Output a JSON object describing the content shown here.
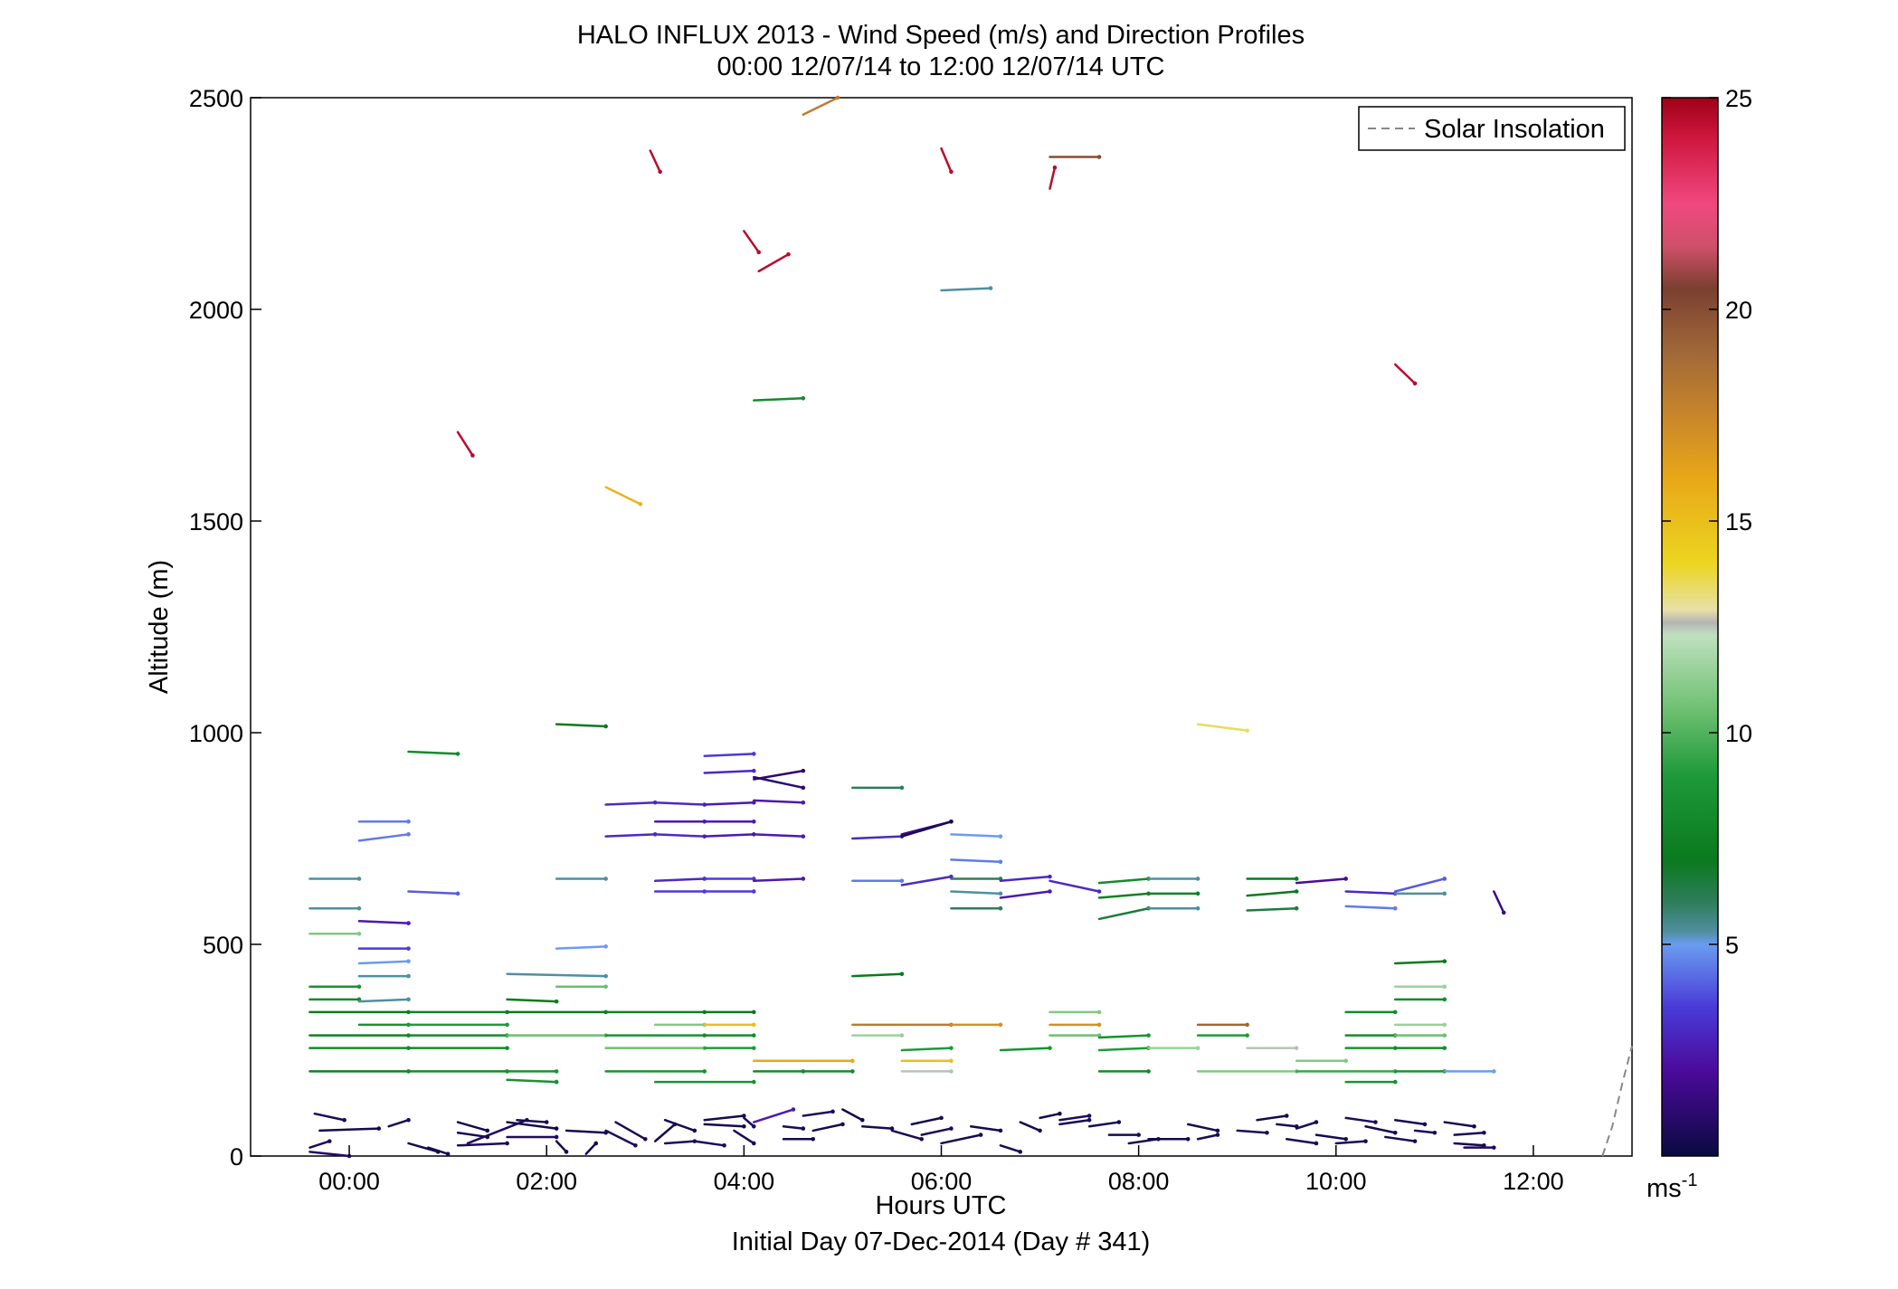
{
  "chart_data": {
    "type": "wind-barb-profile",
    "title": "HALO INFLUX 2013 - Wind Speed (m/s) and Direction Profiles",
    "subtitle": "00:00 12/07/14 to 12:00 12/07/14  UTC",
    "xlabel": "Hours UTC",
    "xlabel2": "Initial Day 07-Dec-2014 (Day # 341)",
    "ylabel": "Altitude (m)",
    "xlim": [
      -1.0,
      13.0
    ],
    "ylim": [
      0,
      2500
    ],
    "xticks": [
      0,
      2,
      4,
      6,
      8,
      10,
      12
    ],
    "xtick_labels": [
      "00:00",
      "02:00",
      "04:00",
      "06:00",
      "08:00",
      "10:00",
      "12:00"
    ],
    "yticks": [
      0,
      500,
      1000,
      1500,
      2000,
      2500
    ],
    "ytick_labels": [
      "0",
      "500",
      "1000",
      "1500",
      "2000",
      "2500"
    ],
    "legend": {
      "label": "Solar Insolation",
      "position": "top-right",
      "style": "dashed",
      "color": "#888888"
    },
    "colorbar": {
      "label": "ms-1",
      "range": [
        0,
        25
      ],
      "ticks": [
        5,
        10,
        15,
        20,
        25
      ],
      "tick_labels": [
        "5",
        "10",
        "15",
        "20",
        "25"
      ],
      "stops": [
        [
          0,
          "#0a0a40"
        ],
        [
          2,
          "#4b0a9a"
        ],
        [
          3.5,
          "#4a3ad8"
        ],
        [
          5,
          "#6a9cf0"
        ],
        [
          5.3,
          "#4f8fa0"
        ],
        [
          6,
          "#2e7d5a"
        ],
        [
          7,
          "#0a7a1e"
        ],
        [
          9,
          "#1e9a3a"
        ],
        [
          10.5,
          "#6cbf6f"
        ],
        [
          12.3,
          "#bfe0bf"
        ],
        [
          12.6,
          "#b4b4b4"
        ],
        [
          12.9,
          "#e8e0a8"
        ],
        [
          14,
          "#ecd520"
        ],
        [
          16,
          "#e8a818"
        ],
        [
          17.5,
          "#c8862a"
        ],
        [
          19,
          "#a06838"
        ],
        [
          20.5,
          "#7a4030"
        ],
        [
          21.5,
          "#d0506a"
        ],
        [
          22.5,
          "#f04880"
        ],
        [
          24,
          "#d01840"
        ],
        [
          25,
          "#a00018"
        ]
      ]
    },
    "solar_insolation": {
      "x": [
        12.7,
        12.8,
        12.9,
        13.0
      ],
      "y": [
        0,
        70,
        170,
        260
      ]
    },
    "segments": [
      [
        -0.35,
        100,
        -0.05,
        85,
        0.5
      ],
      [
        -0.3,
        60,
        0.3,
        65,
        0.3
      ],
      [
        0.4,
        70,
        0.6,
        85,
        0.6
      ],
      [
        -0.4,
        20,
        -0.2,
        35,
        0.5
      ],
      [
        0.6,
        30,
        0.9,
        10,
        0.3
      ],
      [
        -0.4,
        10,
        0.0,
        0,
        0.8
      ],
      [
        1.1,
        80,
        1.4,
        60,
        0.3
      ],
      [
        1.1,
        55,
        1.4,
        45,
        0.4
      ],
      [
        1.1,
        25,
        1.6,
        30,
        0.5
      ],
      [
        1.2,
        30,
        1.8,
        85,
        0.7
      ],
      [
        1.7,
        85,
        2.0,
        80,
        0.4
      ],
      [
        1.6,
        80,
        2.1,
        65,
        0.2
      ],
      [
        1.6,
        45,
        2.1,
        45,
        0.6
      ],
      [
        2.1,
        35,
        2.2,
        10,
        0.3
      ],
      [
        2.2,
        60,
        2.6,
        55,
        0.4
      ],
      [
        2.6,
        60,
        2.9,
        25,
        0.6
      ],
      [
        2.7,
        80,
        3.0,
        40,
        0.5
      ],
      [
        3.1,
        35,
        3.3,
        75,
        0.3
      ],
      [
        3.2,
        85,
        3.5,
        60,
        0.4
      ],
      [
        3.2,
        30,
        3.5,
        35,
        0.6
      ],
      [
        3.5,
        35,
        3.8,
        25,
        0.5
      ],
      [
        3.6,
        75,
        4.0,
        70,
        0.3
      ],
      [
        3.6,
        85,
        4.0,
        95,
        0.4
      ],
      [
        4.0,
        90,
        4.1,
        70,
        0.7
      ],
      [
        3.9,
        60,
        4.1,
        30,
        0.5
      ],
      [
        4.1,
        80,
        4.5,
        110,
        2.5
      ],
      [
        4.4,
        70,
        4.6,
        65,
        0.5
      ],
      [
        4.6,
        95,
        4.9,
        105,
        0.6
      ],
      [
        4.7,
        60,
        5.0,
        75,
        0.4
      ],
      [
        4.4,
        40,
        4.7,
        40,
        0.3
      ],
      [
        5.0,
        110,
        5.2,
        85,
        0.3
      ],
      [
        5.2,
        70,
        5.5,
        65,
        0.4
      ],
      [
        5.5,
        60,
        5.8,
        40,
        0.5
      ],
      [
        5.7,
        75,
        6.0,
        90,
        0.3
      ],
      [
        5.8,
        50,
        6.1,
        65,
        0.6
      ],
      [
        6.0,
        30,
        6.4,
        50,
        0.4
      ],
      [
        6.3,
        70,
        6.6,
        60,
        0.3
      ],
      [
        6.6,
        25,
        6.8,
        10,
        0.5
      ],
      [
        6.8,
        80,
        7.0,
        60,
        0.4
      ],
      [
        7.0,
        90,
        7.2,
        100,
        0.3
      ],
      [
        7.2,
        75,
        7.5,
        85,
        0.5
      ],
      [
        7.2,
        85,
        7.5,
        95,
        0.6
      ],
      [
        7.5,
        70,
        7.8,
        80,
        0.3
      ],
      [
        7.7,
        50,
        8.0,
        50,
        0.4
      ],
      [
        7.9,
        30,
        8.2,
        40,
        0.5
      ],
      [
        8.1,
        40,
        8.5,
        40,
        0.3
      ],
      [
        8.5,
        75,
        8.8,
        60,
        0.4
      ],
      [
        8.6,
        40,
        8.8,
        50,
        0.5
      ],
      [
        9.0,
        60,
        9.3,
        55,
        0.6
      ],
      [
        9.2,
        85,
        9.5,
        95,
        0.3
      ],
      [
        9.4,
        75,
        9.6,
        70,
        0.4
      ],
      [
        9.5,
        40,
        9.8,
        30,
        0.5
      ],
      [
        9.6,
        65,
        9.8,
        80,
        0.3
      ],
      [
        9.8,
        50,
        10.1,
        40,
        0.4
      ],
      [
        10.0,
        30,
        10.3,
        35,
        0.5
      ],
      [
        10.1,
        90,
        10.4,
        80,
        0.6
      ],
      [
        10.3,
        70,
        10.6,
        55,
        0.3
      ],
      [
        10.5,
        45,
        10.8,
        35,
        0.5
      ],
      [
        10.6,
        85,
        10.9,
        75,
        0.4
      ],
      [
        10.8,
        60,
        11.0,
        55,
        0.6
      ],
      [
        11.1,
        80,
        11.4,
        70,
        0.3
      ],
      [
        11.2,
        30,
        11.5,
        25,
        0.4
      ],
      [
        11.2,
        50,
        11.5,
        55,
        0.5
      ],
      [
        11.3,
        20,
        11.6,
        20,
        0.6
      ],
      [
        0.8,
        20,
        1.0,
        5,
        0.4
      ],
      [
        2.4,
        5,
        2.5,
        30,
        0.3
      ],
      [
        -0.4,
        200,
        0.6,
        200,
        7.5
      ],
      [
        0.6,
        200,
        1.6,
        200,
        8.0
      ],
      [
        1.6,
        200,
        2.1,
        200,
        8.5
      ],
      [
        -0.4,
        255,
        0.6,
        255,
        8.0
      ],
      [
        0.6,
        255,
        1.6,
        255,
        8.0
      ],
      [
        -0.4,
        285,
        0.6,
        285,
        7.5
      ],
      [
        0.6,
        285,
        1.6,
        285,
        8.0
      ],
      [
        1.6,
        285,
        2.6,
        285,
        10.5
      ],
      [
        2.6,
        285,
        3.6,
        285,
        8.5
      ],
      [
        3.6,
        285,
        4.1,
        285,
        8.0
      ],
      [
        -0.4,
        340,
        0.6,
        340,
        7.0
      ],
      [
        0.6,
        340,
        1.6,
        340,
        7.5
      ],
      [
        1.6,
        340,
        2.6,
        340,
        7.0
      ],
      [
        2.6,
        340,
        3.6,
        340,
        7.5
      ],
      [
        3.6,
        340,
        4.1,
        340,
        7.0
      ],
      [
        0.1,
        310,
        0.6,
        310,
        8.5
      ],
      [
        0.6,
        310,
        1.6,
        310,
        9.0
      ],
      [
        -0.4,
        370,
        0.1,
        370,
        8.0
      ],
      [
        0.1,
        365,
        0.6,
        370,
        5.3
      ],
      [
        -0.4,
        400,
        0.1,
        400,
        8.5
      ],
      [
        0.1,
        425,
        0.6,
        425,
        5.3
      ],
      [
        0.1,
        455,
        0.6,
        460,
        5.0
      ],
      [
        0.1,
        490,
        0.6,
        490,
        3.5
      ],
      [
        -0.4,
        525,
        0.1,
        525,
        11.0
      ],
      [
        0.1,
        555,
        0.6,
        550,
        2.5
      ],
      [
        -0.4,
        585,
        0.1,
        585,
        5.3
      ],
      [
        -0.4,
        655,
        0.1,
        655,
        5.3
      ],
      [
        0.6,
        625,
        1.1,
        620,
        4.0
      ],
      [
        0.1,
        790,
        0.6,
        790,
        4.5
      ],
      [
        0.1,
        745,
        0.6,
        760,
        4.5
      ],
      [
        0.6,
        955,
        1.1,
        950,
        8.0
      ],
      [
        1.6,
        180,
        2.1,
        175,
        8.5
      ],
      [
        2.1,
        175,
        2.1,
        175,
        8.5
      ],
      [
        1.6,
        370,
        2.1,
        365,
        7.0
      ],
      [
        1.6,
        430,
        2.6,
        425,
        5.3
      ],
      [
        2.1,
        400,
        2.6,
        400,
        10.5
      ],
      [
        2.1,
        490,
        2.6,
        495,
        5.0
      ],
      [
        2.1,
        655,
        2.6,
        655,
        5.3
      ],
      [
        2.1,
        1020,
        2.6,
        1015,
        7.0
      ],
      [
        2.6,
        200,
        3.6,
        200,
        8.5
      ],
      [
        3.1,
        175,
        4.1,
        175,
        8.5
      ],
      [
        2.6,
        255,
        3.6,
        255,
        10.5
      ],
      [
        3.6,
        255,
        4.1,
        255,
        9.0
      ],
      [
        3.1,
        310,
        3.6,
        310,
        11.0
      ],
      [
        3.6,
        310,
        4.1,
        310,
        15.0
      ],
      [
        4.1,
        225,
        5.1,
        225,
        16.0
      ],
      [
        4.1,
        200,
        4.6,
        200,
        8.0
      ],
      [
        4.6,
        200,
        5.1,
        200,
        8.0
      ],
      [
        5.1,
        310,
        6.1,
        310,
        18.0
      ],
      [
        6.1,
        310,
        6.6,
        310,
        17.0
      ],
      [
        5.1,
        285,
        5.6,
        285,
        11.5
      ],
      [
        5.6,
        225,
        6.1,
        225,
        15.0
      ],
      [
        5.6,
        200,
        6.1,
        200,
        12.5
      ],
      [
        5.6,
        250,
        6.1,
        255,
        9.0
      ],
      [
        5.1,
        425,
        5.6,
        430,
        7.0
      ],
      [
        6.6,
        250,
        7.1,
        255,
        8.5
      ],
      [
        7.1,
        285,
        7.6,
        285,
        10.5
      ],
      [
        7.1,
        310,
        7.6,
        310,
        17.0
      ],
      [
        7.1,
        340,
        7.6,
        340,
        11.0
      ],
      [
        7.6,
        250,
        8.1,
        255,
        9.0
      ],
      [
        7.6,
        200,
        8.1,
        200,
        8.0
      ],
      [
        7.6,
        280,
        8.1,
        285,
        8.5
      ],
      [
        8.1,
        255,
        8.6,
        255,
        11.5
      ],
      [
        8.6,
        285,
        9.1,
        285,
        9.0
      ],
      [
        8.6,
        310,
        9.1,
        310,
        19.0
      ],
      [
        9.1,
        255,
        9.6,
        255,
        12.5
      ],
      [
        8.6,
        200,
        9.6,
        200,
        11.0
      ],
      [
        9.6,
        200,
        10.6,
        200,
        9.5
      ],
      [
        9.6,
        225,
        10.1,
        225,
        11.0
      ],
      [
        10.1,
        175,
        10.6,
        175,
        8.5
      ],
      [
        10.1,
        255,
        10.6,
        255,
        8.5
      ],
      [
        10.6,
        255,
        11.1,
        255,
        8.0
      ],
      [
        10.1,
        285,
        10.6,
        285,
        8.0
      ],
      [
        10.6,
        285,
        11.1,
        285,
        10.5
      ],
      [
        10.1,
        340,
        10.6,
        340,
        8.0
      ],
      [
        10.6,
        310,
        11.1,
        310,
        11.5
      ],
      [
        10.6,
        370,
        11.1,
        370,
        8.0
      ],
      [
        10.6,
        400,
        11.1,
        400,
        11.5
      ],
      [
        10.6,
        455,
        11.1,
        460,
        7.0
      ],
      [
        10.6,
        200,
        11.1,
        200,
        8.5
      ],
      [
        11.1,
        200,
        11.6,
        200,
        5.0
      ],
      [
        2.6,
        830,
        3.1,
        835,
        3.0
      ],
      [
        3.1,
        835,
        3.6,
        830,
        3.0
      ],
      [
        3.6,
        830,
        4.1,
        835,
        2.5
      ],
      [
        4.1,
        840,
        4.6,
        835,
        2.5
      ],
      [
        2.6,
        755,
        3.1,
        760,
        3.0
      ],
      [
        3.1,
        760,
        3.6,
        755,
        3.0
      ],
      [
        3.6,
        755,
        4.1,
        760,
        2.5
      ],
      [
        4.1,
        760,
        4.6,
        755,
        2.5
      ],
      [
        3.1,
        790,
        3.6,
        790,
        2.5
      ],
      [
        3.6,
        790,
        4.1,
        790,
        2.5
      ],
      [
        3.1,
        650,
        3.6,
        655,
        3.0
      ],
      [
        3.6,
        655,
        4.1,
        655,
        3.5
      ],
      [
        4.1,
        650,
        4.6,
        655,
        2.5
      ],
      [
        3.1,
        625,
        3.6,
        625,
        3.5
      ],
      [
        3.6,
        625,
        4.1,
        625,
        3.5
      ],
      [
        3.6,
        905,
        4.1,
        910,
        3.0
      ],
      [
        3.6,
        945,
        4.1,
        950,
        3.5
      ],
      [
        4.1,
        890,
        4.6,
        910,
        1.0
      ],
      [
        4.1,
        895,
        4.6,
        870,
        1.0
      ],
      [
        5.1,
        870,
        5.6,
        870,
        6.0
      ],
      [
        5.1,
        750,
        5.6,
        755,
        3.0
      ],
      [
        5.6,
        760,
        6.1,
        790,
        1.5
      ],
      [
        5.6,
        755,
        6.1,
        790,
        0.5
      ],
      [
        5.1,
        650,
        5.6,
        650,
        4.5
      ],
      [
        5.6,
        640,
        6.1,
        660,
        3.0
      ],
      [
        6.1,
        760,
        6.6,
        755,
        5.0
      ],
      [
        6.1,
        700,
        6.6,
        695,
        4.5
      ],
      [
        6.1,
        655,
        6.6,
        655,
        6.0
      ],
      [
        6.1,
        625,
        6.6,
        620,
        5.3
      ],
      [
        6.1,
        585,
        6.6,
        585,
        6.0
      ],
      [
        6.6,
        650,
        7.1,
        660,
        3.0
      ],
      [
        6.6,
        610,
        7.1,
        625,
        2.5
      ],
      [
        7.1,
        650,
        7.6,
        625,
        3.0
      ],
      [
        7.6,
        645,
        8.1,
        655,
        8.0
      ],
      [
        8.1,
        655,
        8.6,
        655,
        5.3
      ],
      [
        7.6,
        610,
        8.1,
        620,
        7.5
      ],
      [
        8.1,
        620,
        8.6,
        620,
        7.5
      ],
      [
        7.6,
        560,
        8.1,
        585,
        6.5
      ],
      [
        8.1,
        585,
        8.6,
        585,
        5.3
      ],
      [
        9.1,
        655,
        9.6,
        655,
        7.0
      ],
      [
        9.1,
        615,
        9.6,
        625,
        7.0
      ],
      [
        9.1,
        580,
        9.6,
        585,
        6.5
      ],
      [
        9.6,
        645,
        10.1,
        655,
        2.0
      ],
      [
        10.1,
        625,
        10.6,
        620,
        3.0
      ],
      [
        10.1,
        590,
        10.6,
        585,
        4.5
      ],
      [
        10.6,
        620,
        11.1,
        620,
        5.3
      ],
      [
        10.6,
        625,
        11.1,
        655,
        4.0
      ],
      [
        11.6,
        625,
        11.7,
        575,
        1.5
      ],
      [
        8.6,
        1020,
        9.1,
        1005,
        13.5
      ],
      [
        1.1,
        1710,
        1.25,
        1655,
        24.5
      ],
      [
        2.6,
        1580,
        2.95,
        1540,
        15.5
      ],
      [
        4.1,
        1785,
        4.6,
        1790,
        8.0
      ],
      [
        3.05,
        2375,
        3.15,
        2325,
        24.5
      ],
      [
        4.0,
        2185,
        4.15,
        2135,
        24.5
      ],
      [
        4.15,
        2090,
        4.45,
        2130,
        24.5
      ],
      [
        4.6,
        2460,
        4.95,
        2500,
        18.0
      ],
      [
        6.0,
        2380,
        6.1,
        2325,
        24.5
      ],
      [
        6.0,
        2045,
        6.5,
        2050,
        5.3
      ],
      [
        7.1,
        2285,
        7.15,
        2335,
        24.5
      ],
      [
        7.1,
        2360,
        7.6,
        2360,
        20.0
      ],
      [
        10.6,
        1870,
        10.8,
        1825,
        24.5
      ]
    ]
  }
}
